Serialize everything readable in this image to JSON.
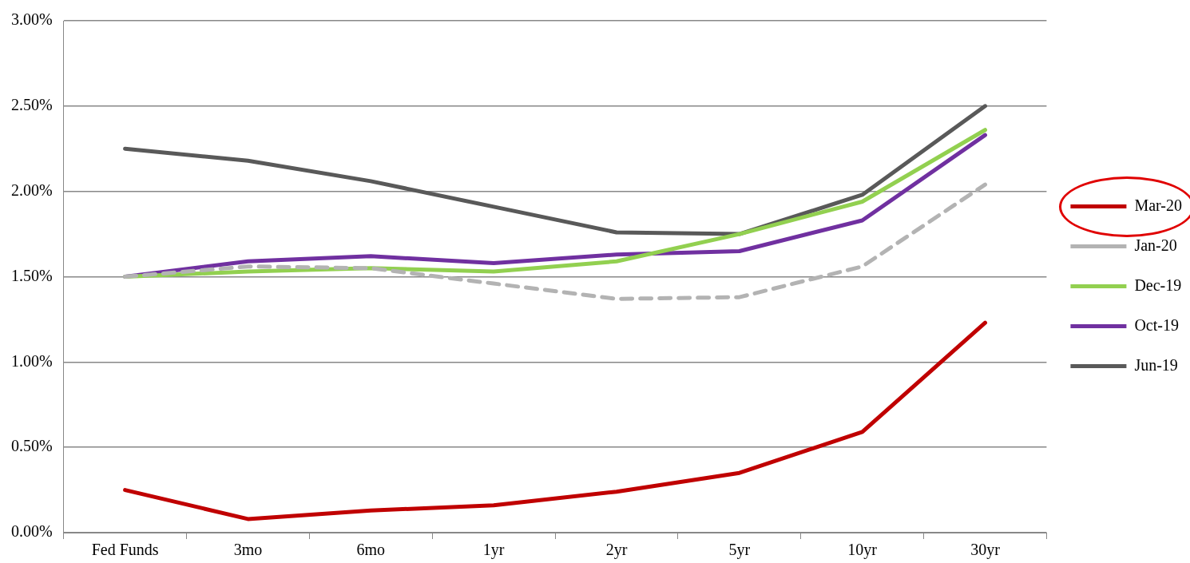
{
  "chart_data": {
    "type": "line",
    "categories": [
      "Fed Funds",
      "3mo",
      "6mo",
      "1yr",
      "2yr",
      "5yr",
      "10yr",
      "30yr"
    ],
    "series": [
      {
        "name": "Mar-20",
        "color": "#c00000",
        "values": [
          0.25,
          0.08,
          0.13,
          0.16,
          0.24,
          0.35,
          0.59,
          1.23
        ]
      },
      {
        "name": "Jan-20",
        "color": "#b3b3b3",
        "line_style": "dashed",
        "values": [
          1.5,
          1.56,
          1.55,
          1.46,
          1.37,
          1.38,
          1.56,
          2.04
        ]
      },
      {
        "name": "Dec-19",
        "color": "#92d050",
        "values": [
          1.5,
          1.53,
          1.55,
          1.53,
          1.59,
          1.75,
          1.94,
          2.36
        ]
      },
      {
        "name": "Oct-19",
        "color": "#7030a0",
        "values": [
          1.5,
          1.59,
          1.62,
          1.58,
          1.63,
          1.65,
          1.83,
          2.33
        ]
      },
      {
        "name": "Jun-19",
        "color": "#595959",
        "values": [
          2.25,
          2.18,
          2.06,
          1.91,
          1.76,
          1.75,
          1.98,
          2.5
        ]
      }
    ],
    "ylim": [
      0,
      3
    ],
    "yticks": [
      {
        "value": 0,
        "label": "0.00%"
      },
      {
        "value": 0.5,
        "label": "0.50%"
      },
      {
        "value": 1,
        "label": "1.00%"
      },
      {
        "value": 1.5,
        "label": "1.50%"
      },
      {
        "value": 2,
        "label": "2.00%"
      },
      {
        "value": 2.5,
        "label": "2.50%"
      },
      {
        "value": 3,
        "label": "3.00%"
      }
    ],
    "grid": "y",
    "legend": "right",
    "marker": "none",
    "line_style": "solid"
  }
}
